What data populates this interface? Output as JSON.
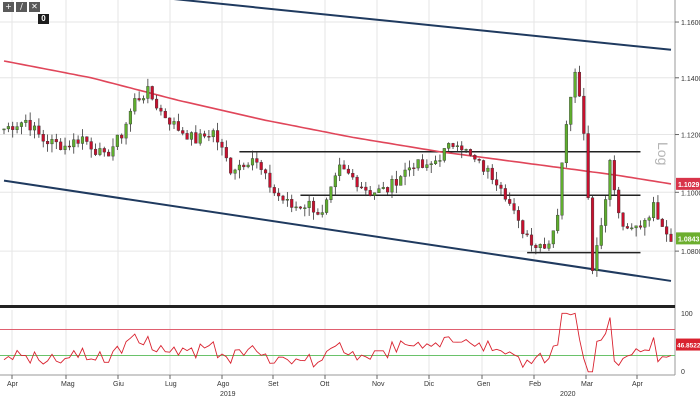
{
  "toolbar": {
    "tool_icons": [
      "plus-icon",
      "pencil-icon",
      "cross-icon"
    ],
    "tool_glyphs": [
      "+",
      "∕",
      "✕"
    ],
    "badge": "0"
  },
  "chart_data": {
    "type": "candlestick",
    "y_scale": "log",
    "ylim": [
      1.062,
      1.168
    ],
    "right_axis_label": "Log",
    "y_tick_labels": [
      "1.1600",
      "1.1400",
      "1.1200",
      "1.1000",
      "1.0800"
    ],
    "x_tick_labels": [
      "Apr",
      "Mag",
      "Giu",
      "Lug",
      "Ago",
      "Set",
      "Ott",
      "Nov",
      "Dic",
      "Gen",
      "Feb",
      "Mar",
      "Apr"
    ],
    "year_labels": [
      "2019",
      "2020"
    ],
    "last_price_label": "1.0843",
    "ma_label": "1.1029",
    "grid": true,
    "colors": {
      "up": "#5fae2e",
      "down": "#c8102e",
      "ma": "#e0465a",
      "channel": "#1f3a5f",
      "level": "#222222",
      "rsi": "#d9222f",
      "rsi_overbought": "#e06070",
      "rsi_oversold": "#6ac26a"
    },
    "price_keypoints": [
      [
        0,
        1.122
      ],
      [
        5,
        1.125
      ],
      [
        9,
        1.118
      ],
      [
        14,
        1.116
      ],
      [
        18,
        1.119
      ],
      [
        23,
        1.112
      ],
      [
        27,
        1.12
      ],
      [
        30,
        1.132
      ],
      [
        33,
        1.135
      ],
      [
        36,
        1.128
      ],
      [
        40,
        1.122
      ],
      [
        44,
        1.118
      ],
      [
        48,
        1.121
      ],
      [
        52,
        1.108
      ],
      [
        57,
        1.112
      ],
      [
        62,
        1.1
      ],
      [
        66,
        1.095
      ],
      [
        70,
        1.096
      ],
      [
        73,
        1.092
      ],
      [
        77,
        1.108
      ],
      [
        80,
        1.105
      ],
      [
        84,
        1.1
      ],
      [
        88,
        1.101
      ],
      [
        91,
        1.106
      ],
      [
        94,
        1.11
      ],
      [
        97,
        1.108
      ],
      [
        101,
        1.114
      ],
      [
        104,
        1.118
      ],
      [
        107,
        1.112
      ],
      [
        111,
        1.107
      ],
      [
        114,
        1.103
      ],
      [
        118,
        1.089
      ],
      [
        122,
        1.082
      ],
      [
        125,
        1.083
      ],
      [
        127,
        1.093
      ],
      [
        129,
        1.125
      ],
      [
        131,
        1.144
      ],
      [
        133,
        1.122
      ],
      [
        135,
        1.075
      ],
      [
        137,
        1.089
      ],
      [
        139,
        1.11
      ],
      [
        141,
        1.092
      ],
      [
        143,
        1.086
      ],
      [
        146,
        1.089
      ],
      [
        149,
        1.095
      ],
      [
        151,
        1.09
      ],
      [
        153,
        1.084
      ]
    ],
    "moving_average": [
      [
        0,
        1.146
      ],
      [
        20,
        1.14
      ],
      [
        40,
        1.132
      ],
      [
        60,
        1.125
      ],
      [
        80,
        1.119
      ],
      [
        100,
        1.114
      ],
      [
        120,
        1.11
      ],
      [
        140,
        1.106
      ],
      [
        153,
        1.1029
      ]
    ],
    "channel_upper": [
      [
        35,
        1.169
      ],
      [
        153,
        1.15
      ]
    ],
    "channel_lower": [
      [
        0,
        1.104
      ],
      [
        153,
        1.07
      ]
    ],
    "horizontal_levels": [
      {
        "value": 1.114,
        "from": 54,
        "to": 146
      },
      {
        "value": 1.099,
        "from": 68,
        "to": 146
      },
      {
        "value": 1.0795,
        "from": 120,
        "to": 146
      }
    ],
    "rsi": {
      "ylim": [
        0,
        100
      ],
      "tick_labels": [
        "100",
        "0"
      ],
      "value_label": "46.8522",
      "overbought": 70,
      "oversold": 30
    }
  }
}
